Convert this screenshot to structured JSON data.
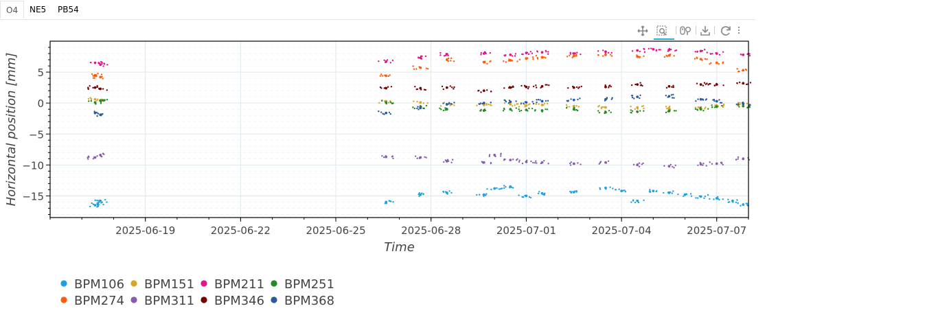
{
  "tabs": [
    {
      "label": "O4",
      "active": true
    },
    {
      "label": "NE5",
      "active": false
    },
    {
      "label": "PB54",
      "active": false
    }
  ],
  "toolbar": {
    "tools": [
      {
        "name": "pan-tool",
        "icon": "pan-icon"
      },
      {
        "name": "box-zoom-tool",
        "icon": "box-zoom-icon",
        "active": true
      },
      {
        "name": "wheel-zoom-tool",
        "icon": "wheel-zoom-icon"
      },
      {
        "name": "save-tool",
        "icon": "save-icon"
      },
      {
        "name": "reset-tool",
        "icon": "reset-icon"
      },
      {
        "name": "more-tools",
        "icon": "vertical-dots-icon"
      }
    ]
  },
  "chart_data": {
    "type": "scatter",
    "xlabel": "Time",
    "ylabel": "Horizontal position [mm]",
    "xlim": [
      "2025-06-16",
      "2025-07-08"
    ],
    "ylim": [
      -18.5,
      10
    ],
    "x_ticks": [
      "2025-06-19",
      "2025-06-22",
      "2025-06-25",
      "2025-06-28",
      "2025-07-01",
      "2025-07-04",
      "2025-07-07"
    ],
    "y_ticks": [
      -15,
      -10,
      -5,
      0,
      5
    ],
    "grid": true,
    "legend_position": "bottom-left",
    "series": [
      {
        "name": "BPM106",
        "color": "#1ba1e2",
        "points": [
          [
            "2025-06-17T10:00",
            -16.5
          ],
          [
            "2025-06-17T12:00",
            -16.2
          ],
          [
            "2025-06-17T14:00",
            -15.8
          ],
          [
            "2025-06-26T14:00",
            -16.0
          ],
          [
            "2025-06-27T16:00",
            -14.8
          ],
          [
            "2025-06-28T12:00",
            -14.5
          ],
          [
            "2025-06-29T16:00",
            -14.8
          ],
          [
            "2025-06-30T00:00",
            -13.8
          ],
          [
            "2025-06-30T12:00",
            -13.5
          ],
          [
            "2025-07-01T00:00",
            -15.0
          ],
          [
            "2025-07-01T12:00",
            -14.6
          ],
          [
            "2025-07-02T12:00",
            -14.4
          ],
          [
            "2025-07-03T12:00",
            -13.7
          ],
          [
            "2025-07-04T00:00",
            -14.2
          ],
          [
            "2025-07-04T12:00",
            -15.8
          ],
          [
            "2025-07-05T00:00",
            -14.2
          ],
          [
            "2025-07-05T12:00",
            -14.5
          ],
          [
            "2025-07-06T00:00",
            -14.8
          ],
          [
            "2025-07-06T12:00",
            -15.1
          ],
          [
            "2025-07-07T00:00",
            -15.4
          ],
          [
            "2025-07-07T12:00",
            -15.8
          ],
          [
            "2025-07-07T20:00",
            -16.4
          ]
        ]
      },
      {
        "name": "BPM151",
        "color": "#daa520",
        "points": [
          [
            "2025-06-17T10:00",
            0.6
          ],
          [
            "2025-06-17T14:00",
            0.4
          ],
          [
            "2025-06-26T14:00",
            0.3
          ],
          [
            "2025-06-27T16:00",
            0.1
          ],
          [
            "2025-06-28T12:00",
            -0.2
          ],
          [
            "2025-06-29T16:00",
            -0.3
          ],
          [
            "2025-06-30T12:00",
            -0.2
          ],
          [
            "2025-07-01T00:00",
            -0.4
          ],
          [
            "2025-07-01T12:00",
            -0.3
          ],
          [
            "2025-07-02T12:00",
            -0.5
          ],
          [
            "2025-07-03T12:00",
            -0.7
          ],
          [
            "2025-07-04T12:00",
            -0.7
          ],
          [
            "2025-07-05T12:00",
            -0.8
          ],
          [
            "2025-07-06T12:00",
            -0.7
          ],
          [
            "2025-07-07T00:00",
            -0.4
          ],
          [
            "2025-07-07T20:00",
            -0.2
          ]
        ]
      },
      {
        "name": "BPM211",
        "color": "#e5138e",
        "points": [
          [
            "2025-06-17T10:00",
            6.5
          ],
          [
            "2025-06-17T14:00",
            6.2
          ],
          [
            "2025-06-26T14:00",
            6.7
          ],
          [
            "2025-06-27T16:00",
            7.3
          ],
          [
            "2025-06-28T12:00",
            7.9
          ],
          [
            "2025-06-29T16:00",
            8.0
          ],
          [
            "2025-06-30T12:00",
            7.8
          ],
          [
            "2025-07-01T00:00",
            8.1
          ],
          [
            "2025-07-01T12:00",
            8.2
          ],
          [
            "2025-07-02T12:00",
            8.0
          ],
          [
            "2025-07-03T12:00",
            8.3
          ],
          [
            "2025-07-04T12:00",
            8.5
          ],
          [
            "2025-07-05T00:00",
            8.7
          ],
          [
            "2025-07-05T12:00",
            8.6
          ],
          [
            "2025-07-06T12:00",
            8.4
          ],
          [
            "2025-07-07T00:00",
            8.0
          ],
          [
            "2025-07-07T20:00",
            7.8
          ]
        ]
      },
      {
        "name": "BPM251",
        "color": "#228b22",
        "points": [
          [
            "2025-06-17T10:00",
            0.1
          ],
          [
            "2025-06-17T14:00",
            0.4
          ],
          [
            "2025-06-26T14:00",
            0.1
          ],
          [
            "2025-06-27T16:00",
            -0.7
          ],
          [
            "2025-06-28T12:00",
            -1.0
          ],
          [
            "2025-06-29T16:00",
            -1.2
          ],
          [
            "2025-06-30T12:00",
            -1.0
          ],
          [
            "2025-07-01T00:00",
            -1.1
          ],
          [
            "2025-07-01T12:00",
            -1.2
          ],
          [
            "2025-07-02T12:00",
            -1.0
          ],
          [
            "2025-07-03T12:00",
            -1.5
          ],
          [
            "2025-07-04T12:00",
            -1.4
          ],
          [
            "2025-07-05T12:00",
            -1.3
          ],
          [
            "2025-07-06T12:00",
            -1.0
          ],
          [
            "2025-07-07T00:00",
            -0.6
          ],
          [
            "2025-07-07T20:00",
            -0.5
          ]
        ]
      },
      {
        "name": "BPM274",
        "color": "#ff5c0a",
        "points": [
          [
            "2025-06-17T10:00",
            4.5
          ],
          [
            "2025-06-17T14:00",
            4.2
          ],
          [
            "2025-06-26T14:00",
            4.4
          ],
          [
            "2025-06-27T16:00",
            5.7
          ],
          [
            "2025-06-28T12:00",
            7.0
          ],
          [
            "2025-06-29T16:00",
            6.6
          ],
          [
            "2025-06-30T12:00",
            6.9
          ],
          [
            "2025-07-01T00:00",
            7.2
          ],
          [
            "2025-07-01T12:00",
            7.4
          ],
          [
            "2025-07-02T12:00",
            7.6
          ],
          [
            "2025-07-03T12:00",
            7.8
          ],
          [
            "2025-07-04T12:00",
            7.5
          ],
          [
            "2025-07-05T12:00",
            7.7
          ],
          [
            "2025-07-06T12:00",
            7.1
          ],
          [
            "2025-07-07T00:00",
            6.5
          ],
          [
            "2025-07-07T20:00",
            5.3
          ]
        ]
      },
      {
        "name": "BPM311",
        "color": "#8a5cad",
        "points": [
          [
            "2025-06-17T10:00",
            -8.8
          ],
          [
            "2025-06-17T14:00",
            -8.4
          ],
          [
            "2025-06-26T14:00",
            -8.7
          ],
          [
            "2025-06-27T16:00",
            -8.8
          ],
          [
            "2025-06-28T12:00",
            -9.4
          ],
          [
            "2025-06-29T16:00",
            -9.6
          ],
          [
            "2025-06-30T00:00",
            -8.4
          ],
          [
            "2025-06-30T12:00",
            -9.2
          ],
          [
            "2025-07-01T00:00",
            -9.5
          ],
          [
            "2025-07-01T12:00",
            -9.6
          ],
          [
            "2025-07-02T12:00",
            -9.8
          ],
          [
            "2025-07-03T12:00",
            -9.6
          ],
          [
            "2025-07-04T12:00",
            -10.0
          ],
          [
            "2025-07-05T12:00",
            -10.2
          ],
          [
            "2025-07-06T12:00",
            -9.9
          ],
          [
            "2025-07-07T00:00",
            -9.8
          ],
          [
            "2025-07-07T20:00",
            -9.0
          ]
        ]
      },
      {
        "name": "BPM346",
        "color": "#7a0000",
        "points": [
          [
            "2025-06-17T10:00",
            2.5
          ],
          [
            "2025-06-17T14:00",
            2.3
          ],
          [
            "2025-06-26T14:00",
            2.4
          ],
          [
            "2025-06-27T16:00",
            2.4
          ],
          [
            "2025-06-28T12:00",
            2.5
          ],
          [
            "2025-06-29T16:00",
            2.0
          ],
          [
            "2025-06-30T12:00",
            2.5
          ],
          [
            "2025-07-01T00:00",
            2.6
          ],
          [
            "2025-07-01T12:00",
            2.7
          ],
          [
            "2025-07-02T12:00",
            2.5
          ],
          [
            "2025-07-03T12:00",
            2.6
          ],
          [
            "2025-07-04T12:00",
            3.0
          ],
          [
            "2025-07-05T12:00",
            2.7
          ],
          [
            "2025-07-06T12:00",
            3.0
          ],
          [
            "2025-07-07T00:00",
            3.0
          ],
          [
            "2025-07-07T20:00",
            3.2
          ]
        ]
      },
      {
        "name": "BPM368",
        "color": "#2b5a9a",
        "points": [
          [
            "2025-06-17T10:00",
            -1.6
          ],
          [
            "2025-06-17T14:00",
            -1.9
          ],
          [
            "2025-06-26T14:00",
            -1.6
          ],
          [
            "2025-06-27T16:00",
            -0.8
          ],
          [
            "2025-06-28T12:00",
            -0.2
          ],
          [
            "2025-06-29T16:00",
            0.0
          ],
          [
            "2025-06-30T12:00",
            0.2
          ],
          [
            "2025-07-01T00:00",
            0.1
          ],
          [
            "2025-07-01T12:00",
            0.3
          ],
          [
            "2025-07-02T12:00",
            0.5
          ],
          [
            "2025-07-03T12:00",
            0.6
          ],
          [
            "2025-07-04T12:00",
            1.0
          ],
          [
            "2025-07-05T12:00",
            1.1
          ],
          [
            "2025-07-06T12:00",
            0.6
          ],
          [
            "2025-07-07T00:00",
            0.3
          ],
          [
            "2025-07-07T20:00",
            -0.1
          ]
        ]
      }
    ]
  }
}
